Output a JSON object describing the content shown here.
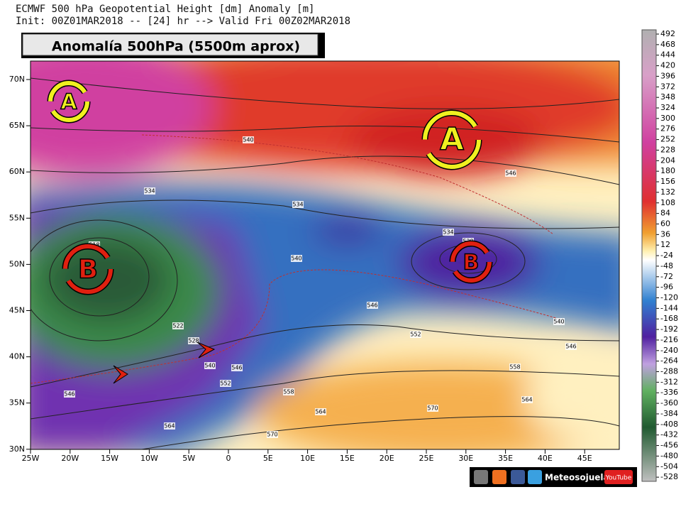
{
  "header": {
    "title": "ECMWF 500 hPa Geopotential Height [dm] Anomaly [m]",
    "subtitle": "Init: 00Z01MAR2018 -- [24] hr --> Valid Fri 00Z02MAR2018",
    "banner": "Anomalía 500hPa (5500m aprox)"
  },
  "map": {
    "lat_labels": [
      "70N",
      "65N",
      "60N",
      "55N",
      "50N",
      "45N",
      "40N",
      "35N",
      "30N"
    ],
    "lon_labels": [
      "25W",
      "20W",
      "15W",
      "10W",
      "5W",
      "0",
      "5E",
      "10E",
      "15E",
      "20E",
      "25E",
      "30E",
      "35E",
      "40E",
      "45E"
    ],
    "contour_labels": [
      "540",
      "534",
      "546",
      "518",
      "540",
      "528",
      "534",
      "540",
      "546",
      "522",
      "528",
      "552",
      "540",
      "546",
      "546",
      "552",
      "558",
      "558",
      "546",
      "564",
      "564",
      "570",
      "564",
      "570",
      "534"
    ],
    "centers": [
      "A",
      "A",
      "B",
      "B"
    ]
  },
  "colorbar": {
    "labels": [
      "492",
      "468",
      "444",
      "420",
      "396",
      "372",
      "348",
      "324",
      "300",
      "276",
      "252",
      "228",
      "204",
      "180",
      "156",
      "132",
      "108",
      "84",
      "60",
      "36",
      "12",
      "-24",
      "-48",
      "-72",
      "-96",
      "-120",
      "-144",
      "-168",
      "-192",
      "-216",
      "-240",
      "-264",
      "-288",
      "-312",
      "-336",
      "-360",
      "-384",
      "-408",
      "-432",
      "-456",
      "-480",
      "-504",
      "-528"
    ]
  },
  "footer": {
    "brand": "Meteosojuela",
    "video": "YouTube"
  }
}
